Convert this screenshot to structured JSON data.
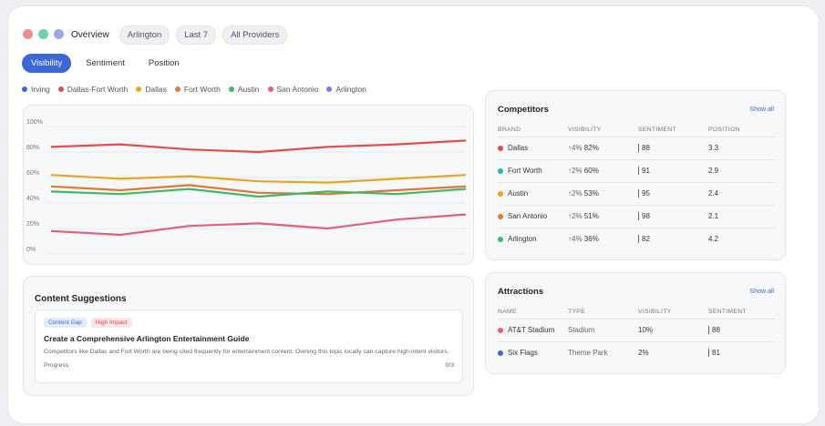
{
  "window_dots": [
    "#ee8f93",
    "#68d3b0",
    "#9aa9e6"
  ],
  "topbar": {
    "overview": "Overview",
    "location": "Arlington",
    "period": "Last 7",
    "providers": "All Providers"
  },
  "tabs": [
    "Visibility",
    "Sentiment",
    "Position"
  ],
  "active_tab": "Visibility",
  "legend": [
    {
      "label": "Irving",
      "color": "#3c67d6"
    },
    {
      "label": "Dallas-Fort Worth",
      "color": "#e0504a"
    },
    {
      "label": "Dallas",
      "color": "#e8a51e"
    },
    {
      "label": "Fort Worth",
      "color": "#e07736"
    },
    {
      "label": "Austin",
      "color": "#3fb868"
    },
    {
      "label": "San Antonio",
      "color": "#e0607c"
    },
    {
      "label": "Arlington",
      "color": "#8a72e0"
    }
  ],
  "chart_data": {
    "type": "line",
    "x": [
      1,
      2,
      3,
      4,
      5,
      6,
      7
    ],
    "ylim": [
      0,
      100
    ],
    "yticks": [
      "100%",
      "80%",
      "60%",
      "40%",
      "20%",
      "0%"
    ],
    "grid": true,
    "series": [
      {
        "color": "#e0504a",
        "values": [
          84,
          86,
          82,
          80,
          84,
          86,
          89
        ]
      },
      {
        "color": "#e8a51e",
        "values": [
          62,
          59,
          61,
          57,
          56,
          59,
          62
        ]
      },
      {
        "color": "#e07736",
        "values": [
          53,
          50,
          54,
          48,
          47,
          50,
          53
        ]
      },
      {
        "color": "#3fb868",
        "values": [
          49,
          47,
          51,
          45,
          49,
          47,
          51
        ]
      },
      {
        "color": "#e0607c",
        "values": [
          18,
          15,
          22,
          24,
          20,
          27,
          31
        ]
      }
    ]
  },
  "content_suggestions": {
    "title": "Content Suggestions",
    "tag1": "Content Gap",
    "tag2": "High Impact",
    "item_title": "Create a Comprehensive Arlington Entertainment Guide",
    "item_desc": "Competitors like Dallas and Fort Worth are being cited frequently for entertainment content. Owning this topic locally can capture high-intent visitors.",
    "progress_label": "Progress",
    "progress_value": "0/3"
  },
  "competitors": {
    "title": "Competitors",
    "show_all": "Show all",
    "headers": [
      "BRAND",
      "VISIBILITY",
      "SENTIMENT",
      "POSITION"
    ],
    "rows": [
      {
        "color": "#e0504a",
        "brand": "Dallas",
        "change": "↑4%",
        "visibility": "82%",
        "sentiment": "88",
        "position": "3.3"
      },
      {
        "color": "#22b5c8",
        "brand": "Fort Worth",
        "change": "↑2%",
        "visibility": "60%",
        "sentiment": "91",
        "position": "2.9"
      },
      {
        "color": "#e8a51e",
        "brand": "Austin",
        "change": "↑2%",
        "visibility": "53%",
        "sentiment": "95",
        "position": "2.4"
      },
      {
        "color": "#e07736",
        "brand": "San Antonio",
        "change": "↑2%",
        "visibility": "51%",
        "sentiment": "98",
        "position": "2.1"
      },
      {
        "color": "#3fb868",
        "brand": "Arlington",
        "change": "↑4%",
        "visibility": "36%",
        "sentiment": "82",
        "position": "4.2"
      }
    ]
  },
  "attractions": {
    "title": "Attractions",
    "show_all": "Show all",
    "headers": [
      "NAME",
      "TYPE",
      "VISIBILITY",
      "SENTIMENT"
    ],
    "rows": [
      {
        "color": "#e0607c",
        "name": "AT&T Stadium",
        "type": "Stadium",
        "visibility": "10%",
        "sentiment": "88"
      },
      {
        "color": "#3c67d6",
        "name": "Six Flags",
        "type": "Theme Park",
        "visibility": "2%",
        "sentiment": "81"
      }
    ]
  }
}
